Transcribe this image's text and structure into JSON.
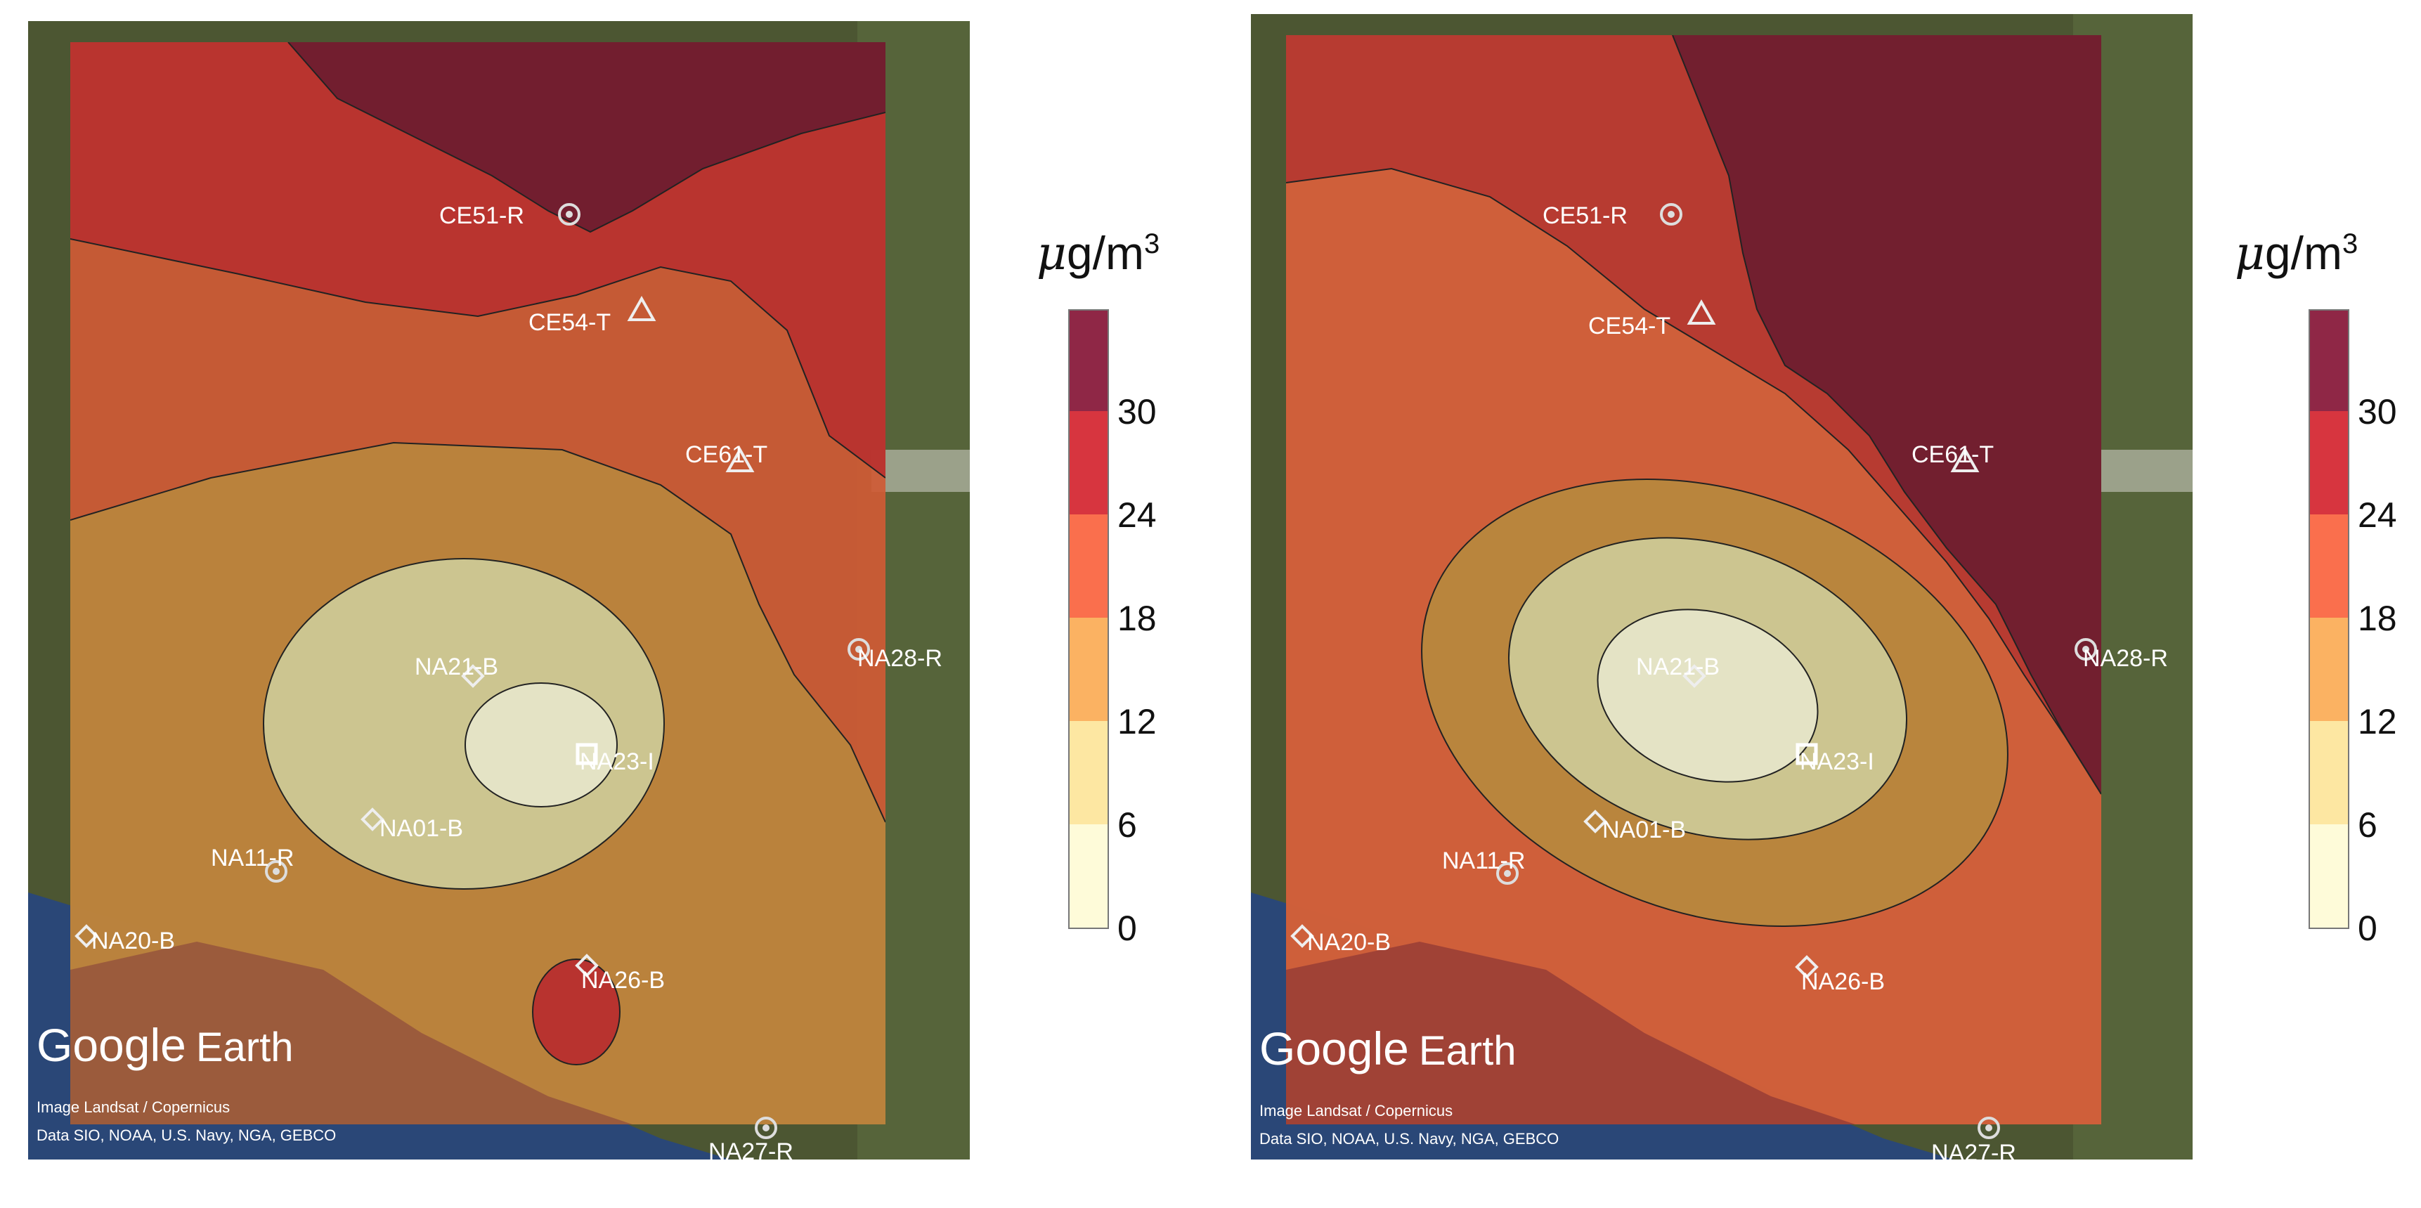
{
  "brand": {
    "name": "Google",
    "suffix": "Earth"
  },
  "attribution": {
    "line1": "Image Landsat / Copernicus",
    "line2": "Data SIO, NOAA, U.S. Navy, NGA, GEBCO"
  },
  "legend": {
    "unit_mu": "μ",
    "unit_rest": "g/m",
    "unit_exp": "3",
    "ticks": [
      "0",
      "6",
      "12",
      "18",
      "24",
      "30"
    ],
    "colors": [
      "#fefbd9",
      "#fde7a2",
      "#fbb262",
      "#fa6f4d",
      "#d7353f",
      "#8f2746"
    ]
  },
  "stations": [
    {
      "id": "CE51-R",
      "icon": "target-icon"
    },
    {
      "id": "CE54-T",
      "icon": "triangle-icon"
    },
    {
      "id": "CE61-T",
      "icon": "triangle-icon"
    },
    {
      "id": "NA28-R",
      "icon": "target-icon"
    },
    {
      "id": "NA21-B",
      "icon": "diamond-icon"
    },
    {
      "id": "NA23-I",
      "icon": "square-icon"
    },
    {
      "id": "NA01-B",
      "icon": "diamond-icon"
    },
    {
      "id": "NA11-R",
      "icon": "target-icon"
    },
    {
      "id": "NA20-B",
      "icon": "diamond-icon"
    },
    {
      "id": "NA26-B",
      "icon": "diamond-icon"
    },
    {
      "id": "NA27-R",
      "icon": "target-icon"
    }
  ]
}
